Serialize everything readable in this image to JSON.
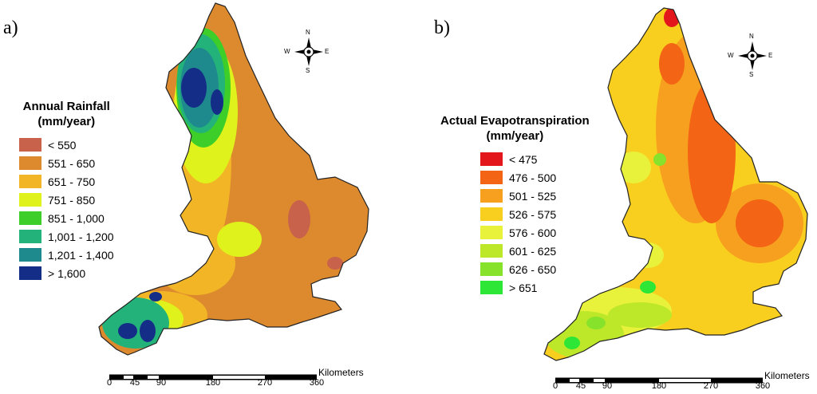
{
  "panels": [
    {
      "label": "a)",
      "legend_title_line1": "Annual Rainfall",
      "legend_title_line2": "(mm/year)",
      "classes": [
        {
          "label": "< 550",
          "color": "#c8624a"
        },
        {
          "label": "551 - 650",
          "color": "#dd8a2e"
        },
        {
          "label": "651 - 750",
          "color": "#f2b526"
        },
        {
          "label": "751 - 850",
          "color": "#dff21c"
        },
        {
          "label": "851 - 1,000",
          "color": "#3dce2a"
        },
        {
          "label": "1,001 - 1,200",
          "color": "#23b27a"
        },
        {
          "label": "1,201 - 1,400",
          "color": "#1f8a8e"
        },
        {
          "label": "> 1,600",
          "color": "#142e88"
        }
      ]
    },
    {
      "label": "b)",
      "legend_title_line1": "Actual Evapotranspiration",
      "legend_title_line2": "(mm/year)",
      "classes": [
        {
          "label": "< 475",
          "color": "#e3171b"
        },
        {
          "label": "476 - 500",
          "color": "#f36414"
        },
        {
          "label": "501 - 525",
          "color": "#f7a01f"
        },
        {
          "label": "526 - 575",
          "color": "#f9cf1f"
        },
        {
          "label": "576 - 600",
          "color": "#e9f23a"
        },
        {
          "label": "601 - 625",
          "color": "#bde82a"
        },
        {
          "label": "626 - 650",
          "color": "#86e22a"
        },
        {
          "label": "> 651",
          "color": "#2ee636"
        }
      ]
    }
  ],
  "scalebar": {
    "ticks": [
      "0",
      "45",
      "90",
      "180",
      "270",
      "360"
    ],
    "unit": "Kilometers"
  },
  "compass": {
    "n": "N",
    "s": "S",
    "e": "E",
    "w": "W"
  }
}
